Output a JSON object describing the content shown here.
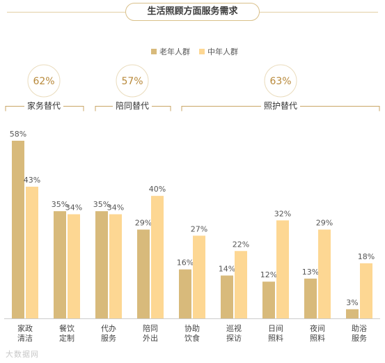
{
  "header": {
    "title": "生活照顾方面服务需求"
  },
  "legend": [
    {
      "label": "老年人群",
      "color": "#d8ba7b"
    },
    {
      "label": "中年人群",
      "color": "#fdd793"
    }
  ],
  "groups": [
    {
      "label": "家务替代",
      "percent": "62%"
    },
    {
      "label": "陪同替代",
      "percent": "57%"
    },
    {
      "label": "照护替代",
      "percent": "63%"
    }
  ],
  "colors": {
    "accent": "#b8893a",
    "bracket": "#c9a666"
  },
  "watermark": "大数据网",
  "chart_data": {
    "type": "bar",
    "categories": [
      [
        "家政",
        "清洁"
      ],
      [
        "餐饮",
        "定制"
      ],
      [
        "代办",
        "服务"
      ],
      [
        "陪同",
        "外出"
      ],
      [
        "协助",
        "饮食"
      ],
      [
        "巡视",
        "探访"
      ],
      [
        "日间",
        "照料"
      ],
      [
        "夜间",
        "照料"
      ],
      [
        "助浴",
        "服务"
      ]
    ],
    "series": [
      {
        "name": "老年人群",
        "color": "#d8ba7b",
        "values": [
          58,
          35,
          35,
          29,
          16,
          14,
          12,
          13,
          3
        ]
      },
      {
        "name": "中年人群",
        "color": "#fdd793",
        "values": [
          43,
          34,
          34,
          40,
          27,
          22,
          32,
          29,
          18
        ]
      }
    ],
    "value_suffix": "%",
    "ylim": [
      0,
      58
    ],
    "title": "生活照顾方面服务需求",
    "xlabel": "",
    "ylabel": "",
    "legend_position": "top-right",
    "grid": false
  }
}
